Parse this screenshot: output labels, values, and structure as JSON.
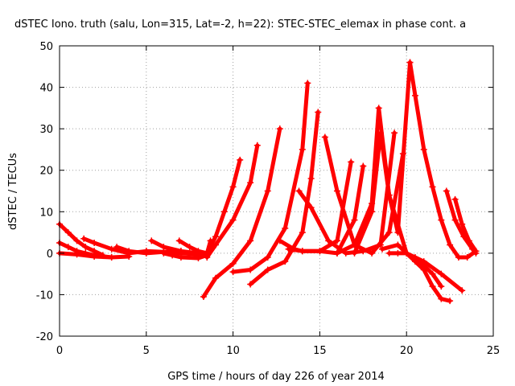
{
  "chart_data": {
    "type": "scatter",
    "title": "dSTEC Iono. truth (salu, Lon=315, Lat=-2, h=22): STEC-STEC_elemax in phase cont. a",
    "xlabel": "GPS time / hours of day 226 of year 2014",
    "ylabel": "dSTEC  / TECUs",
    "xlim": [
      0,
      25
    ],
    "ylim": [
      -20,
      50
    ],
    "xticks": [
      0,
      5,
      10,
      15,
      20,
      25
    ],
    "yticks": [
      -20,
      -10,
      0,
      10,
      20,
      30,
      40,
      50
    ],
    "grid": true,
    "marker": "+",
    "color": "#ff0000",
    "series": [
      {
        "x": [
          0,
          0.5,
          1,
          1.5,
          2,
          2.5
        ],
        "y": [
          7,
          5,
          3,
          1.5,
          0.5,
          -0.5
        ]
      },
      {
        "x": [
          0,
          0.5,
          1,
          1.5,
          2,
          3
        ],
        "y": [
          2.5,
          1.5,
          0.5,
          0,
          -0.5,
          -1
        ]
      },
      {
        "x": [
          0,
          1,
          2,
          3,
          4
        ],
        "y": [
          0,
          -0.3,
          -0.8,
          -1,
          -0.8
        ]
      },
      {
        "x": [
          1.4,
          2,
          3,
          4,
          5
        ],
        "y": [
          3.5,
          2.5,
          1,
          0,
          0.5
        ]
      },
      {
        "x": [
          3.3,
          4,
          5,
          6,
          7
        ],
        "y": [
          1.5,
          0.5,
          0,
          0.3,
          0.5
        ]
      },
      {
        "x": [
          5,
          6,
          7,
          8,
          8.5
        ],
        "y": [
          0.5,
          0.3,
          0,
          -0.3,
          -0.3
        ]
      },
      {
        "x": [
          5.3,
          6,
          7,
          8,
          8.5
        ],
        "y": [
          3,
          1.5,
          0.5,
          0,
          0
        ]
      },
      {
        "x": [
          6,
          6.5,
          7,
          8,
          8.5
        ],
        "y": [
          0,
          -0.5,
          -1,
          -1.2,
          -0.5
        ]
      },
      {
        "x": [
          6.9,
          7.5,
          8,
          8.5,
          8.7
        ],
        "y": [
          3,
          1.5,
          0.5,
          0,
          3
        ]
      },
      {
        "x": [
          8.5,
          9,
          9.5,
          10,
          10.4
        ],
        "y": [
          0,
          4,
          10,
          16,
          22.5
        ]
      },
      {
        "x": [
          8.5,
          9,
          10,
          11,
          11.4
        ],
        "y": [
          -1,
          2,
          8,
          17,
          26
        ]
      },
      {
        "x": [
          8.3,
          9,
          10,
          11,
          12,
          12.7
        ],
        "y": [
          -10.5,
          -6,
          -2.5,
          3,
          15,
          30
        ]
      },
      {
        "x": [
          10,
          11,
          12,
          13,
          14,
          14.3
        ],
        "y": [
          -4.5,
          -4,
          -1,
          6,
          25,
          41
        ]
      },
      {
        "x": [
          11,
          12,
          13,
          14,
          14.5,
          14.9
        ],
        "y": [
          -7.5,
          -4,
          -2,
          5,
          18,
          34
        ]
      },
      {
        "x": [
          12.7,
          13.5,
          14,
          15,
          16,
          16.8
        ],
        "y": [
          3,
          1,
          0.5,
          0.5,
          3,
          22
        ]
      },
      {
        "x": [
          13.2,
          14,
          15,
          16,
          17,
          17.5
        ],
        "y": [
          1,
          0.5,
          0.5,
          0,
          8,
          21
        ]
      },
      {
        "x": [
          13.8,
          14.5,
          15.5,
          16.5,
          17.5,
          18.5,
          19.3
        ],
        "y": [
          15,
          11,
          3,
          0,
          0.5,
          2,
          29
        ]
      },
      {
        "x": [
          15.3,
          16,
          17,
          18,
          19,
          19.8
        ],
        "y": [
          28,
          15,
          2,
          0,
          5,
          24
        ]
      },
      {
        "x": [
          16,
          17,
          18,
          18.4,
          19,
          19.5,
          20.2
        ],
        "y": [
          0,
          2,
          12,
          35,
          14,
          5,
          46
        ]
      },
      {
        "x": [
          17,
          18,
          18.5,
          19,
          20,
          21,
          21.5,
          22
        ],
        "y": [
          0,
          10,
          29,
          14,
          0,
          -3,
          -5,
          -8
        ]
      },
      {
        "x": [
          18.6,
          19.5,
          20,
          20.5,
          21,
          21.5,
          22,
          22.5
        ],
        "y": [
          1,
          2,
          0,
          -2,
          -4,
          -8,
          -11,
          -11.5
        ]
      },
      {
        "x": [
          19,
          19.5,
          20,
          20.5,
          21,
          22,
          23.2
        ],
        "y": [
          0,
          0,
          0,
          -1,
          -2,
          -5,
          -9
        ]
      },
      {
        "x": [
          20.2,
          20.5,
          21,
          21.5,
          22,
          22.5,
          23,
          23.5,
          24
        ],
        "y": [
          46,
          38,
          25,
          16,
          8,
          2,
          -1,
          -1,
          0.5
        ]
      },
      {
        "x": [
          22.3,
          22.8,
          23.3,
          23.8,
          24
        ],
        "y": [
          15,
          8,
          4,
          1,
          0
        ]
      },
      {
        "x": [
          22.8,
          23.2,
          23.6,
          24
        ],
        "y": [
          13,
          7,
          3,
          0.5
        ]
      }
    ]
  }
}
